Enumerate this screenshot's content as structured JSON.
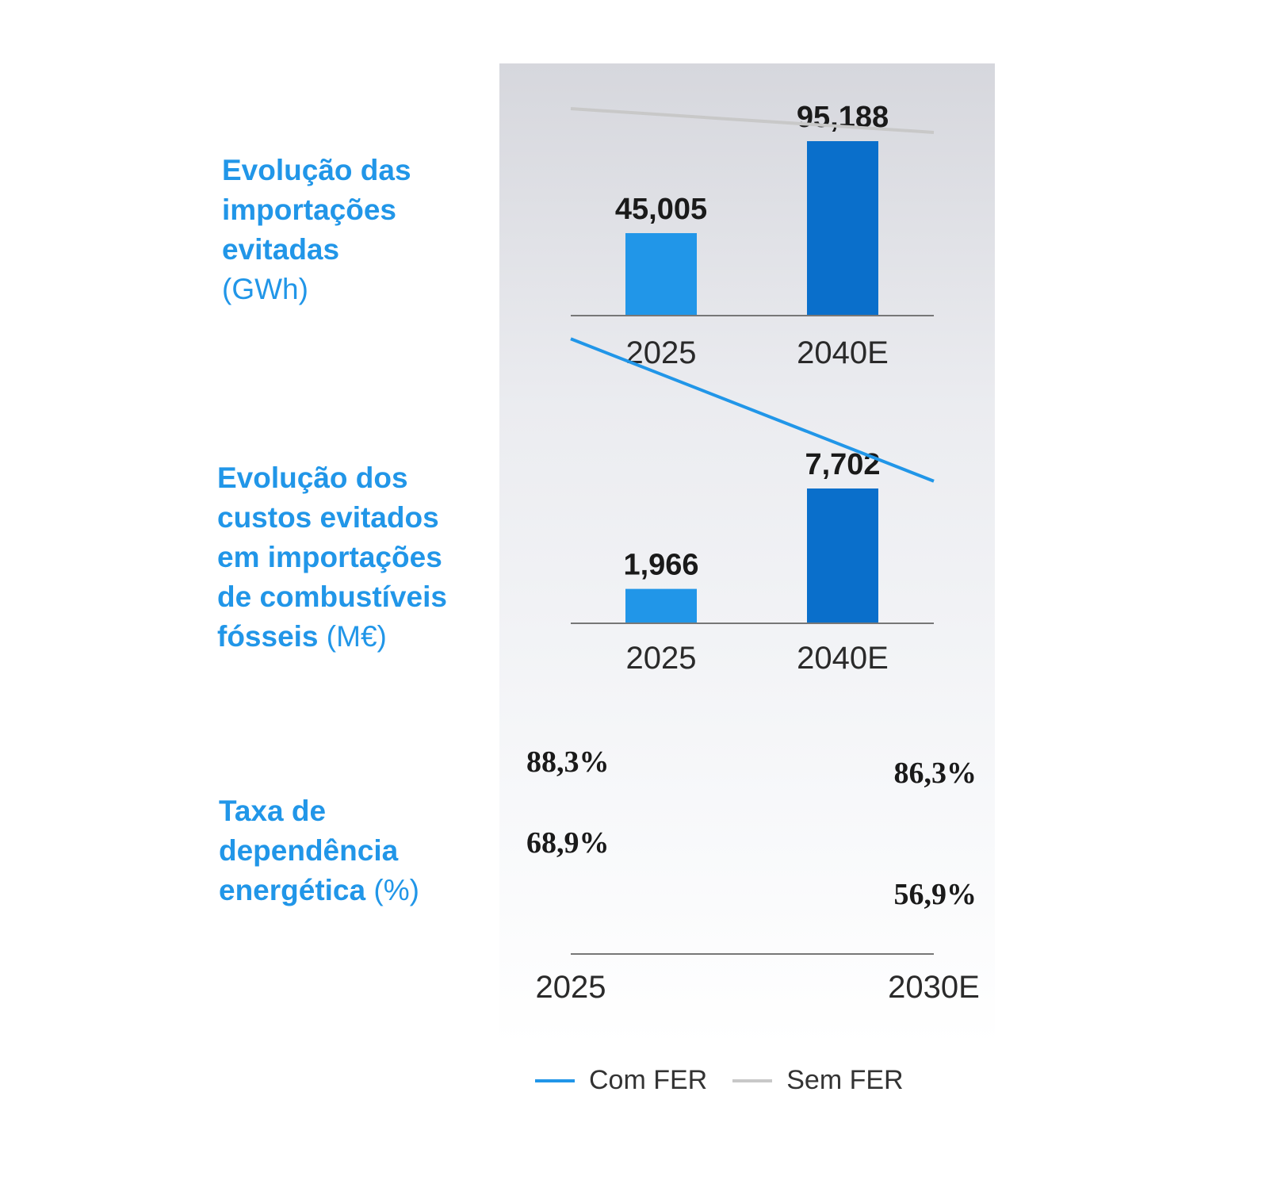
{
  "labels": {
    "imports": {
      "title_lines": [
        "Evolução das",
        "importações",
        "evitadas"
      ],
      "unit": "(GWh)"
    },
    "costs": {
      "title_lines": [
        "Evolução dos",
        "custos evitados",
        "em importações",
        "de combustíveis",
        "fósseis"
      ],
      "unit": "(M€)"
    },
    "dependency": {
      "title_lines": [
        "Taxa de",
        "dependência",
        "energética"
      ],
      "unit": "(%)"
    }
  },
  "legend": {
    "items": [
      {
        "label": "Com FER",
        "color": "#2196e8"
      },
      {
        "label": "Sem FER",
        "color": "#c8c8c8"
      }
    ]
  },
  "colors": {
    "bar_light": "#2196e8",
    "bar_dark": "#0a6fcb",
    "label": "#2196e8"
  },
  "chart_data": [
    {
      "type": "bar",
      "title": "Evolução das importações evitadas (GWh)",
      "categories": [
        "2025",
        "2040E"
      ],
      "values": [
        45005,
        95188
      ],
      "value_labels": [
        "45,005",
        "95,188"
      ],
      "bar_colors": [
        "#2196e8",
        "#0a6fcb"
      ]
    },
    {
      "type": "bar",
      "title": "Evolução dos custos evitados em importações de combustíveis fósseis (M€)",
      "categories": [
        "2025",
        "2040E"
      ],
      "values": [
        1966,
        7702
      ],
      "value_labels": [
        "1,966",
        "7,702"
      ],
      "bar_colors": [
        "#2196e8",
        "#0a6fcb"
      ]
    },
    {
      "type": "line",
      "title": "Taxa de dependência energética (%)",
      "x": [
        "2025",
        "2030E"
      ],
      "series": [
        {
          "name": "Sem FER",
          "values": [
            88.3,
            86.3
          ],
          "value_labels": [
            "88,3%",
            "86,3%"
          ],
          "color": "#c8c8c8"
        },
        {
          "name": "Com FER",
          "values": [
            68.9,
            56.9
          ],
          "value_labels": [
            "68,9%",
            "56,9%"
          ],
          "color": "#2196e8"
        }
      ]
    }
  ]
}
